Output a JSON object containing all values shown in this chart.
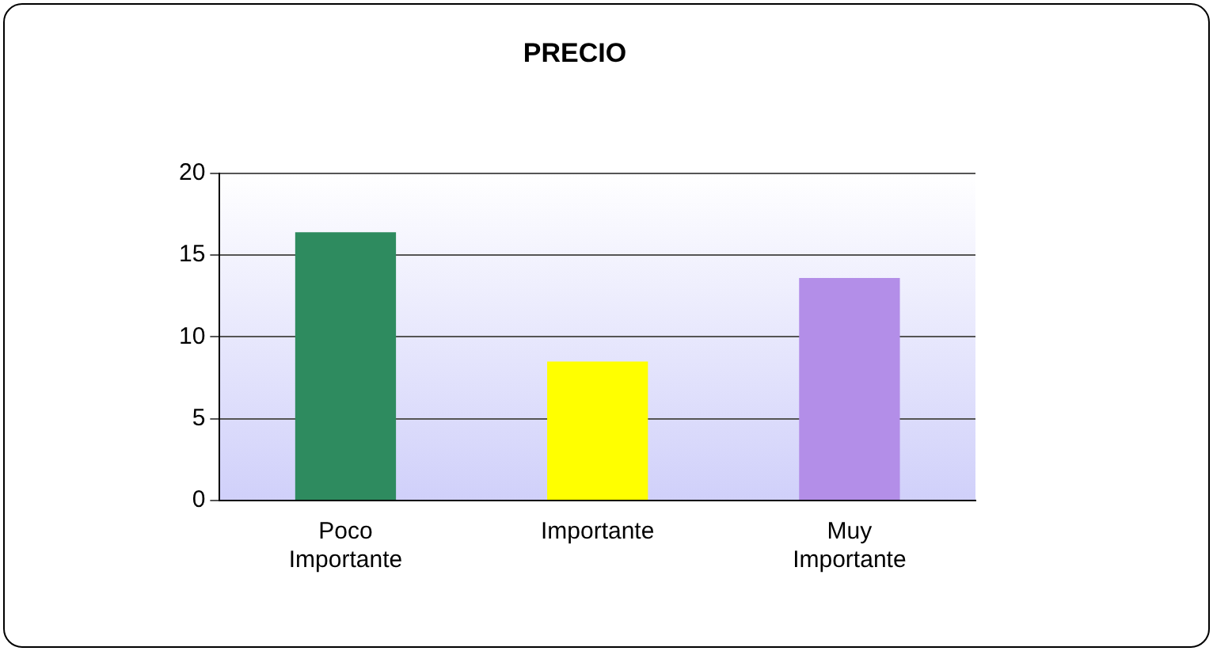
{
  "chart_data": {
    "type": "bar",
    "title": "PRECIO",
    "categories": [
      "Poco Importante",
      "Importante",
      "Muy Importante"
    ],
    "values": [
      16.4,
      8.5,
      13.6
    ],
    "colors": [
      "#2e8b5f",
      "#ffff00",
      "#b38ee8"
    ],
    "ylim": [
      0,
      20
    ],
    "yticks": [
      0,
      5,
      10,
      15,
      20
    ],
    "grid": "y",
    "legend": false
  }
}
